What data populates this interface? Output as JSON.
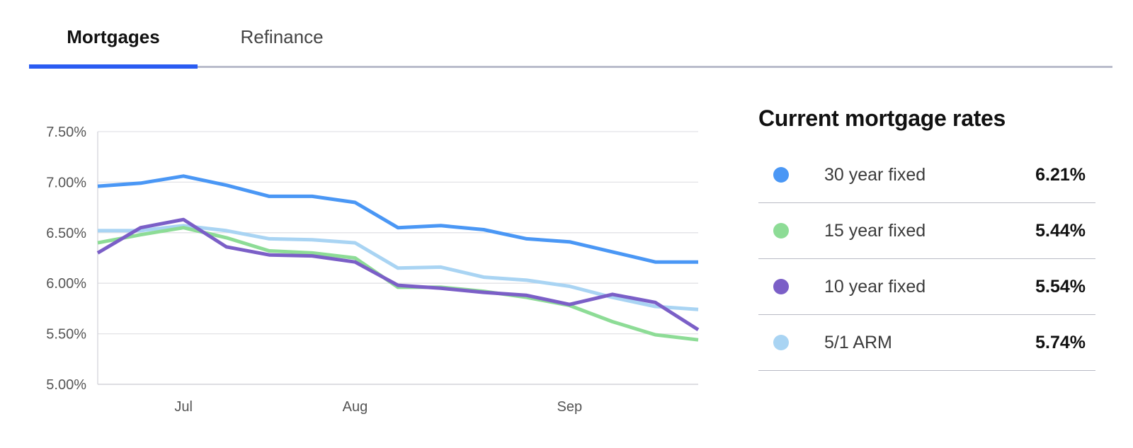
{
  "tabs": [
    {
      "label": "Mortgages",
      "active": true
    },
    {
      "label": "Refinance",
      "active": false
    }
  ],
  "accent_color": "#2a5cf2",
  "rates_panel": {
    "title": "Current mortgage rates",
    "items": [
      {
        "label": "30 year fixed",
        "value": "6.21%",
        "color": "#4a97f5"
      },
      {
        "label": "15 year fixed",
        "value": "5.44%",
        "color": "#8ddc96"
      },
      {
        "label": "10 year fixed",
        "value": "5.54%",
        "color": "#7b5fc7"
      },
      {
        "label": "5/1 ARM",
        "value": "5.74%",
        "color": "#a9d4f3"
      }
    ]
  },
  "chart_data": {
    "type": "line",
    "y_ticks": [
      "7.50%",
      "7.00%",
      "6.50%",
      "6.00%",
      "5.50%",
      "5.00%"
    ],
    "ylim": [
      5.0,
      7.5
    ],
    "x_tick_labels": [
      {
        "label": "Jul",
        "index": 2
      },
      {
        "label": "Aug",
        "index": 6
      },
      {
        "label": "Sep",
        "index": 11
      }
    ],
    "grid": true,
    "series": [
      {
        "name": "30 year fixed",
        "color": "#4a97f5",
        "values": [
          6.96,
          6.99,
          7.06,
          6.97,
          6.86,
          6.86,
          6.8,
          6.55,
          6.57,
          6.53,
          6.44,
          6.41,
          6.31,
          6.21,
          6.21
        ]
      },
      {
        "name": "15 year fixed",
        "color": "#8ddc96",
        "values": [
          6.4,
          6.48,
          6.55,
          6.45,
          6.32,
          6.3,
          6.25,
          5.96,
          5.96,
          5.92,
          5.86,
          5.78,
          5.62,
          5.49,
          5.44
        ]
      },
      {
        "name": "10 year fixed",
        "color": "#7b5fc7",
        "values": [
          6.3,
          6.55,
          6.63,
          6.36,
          6.28,
          6.27,
          6.21,
          5.98,
          5.95,
          5.91,
          5.88,
          5.79,
          5.89,
          5.81,
          5.54
        ]
      },
      {
        "name": "5/1 ARM",
        "color": "#a9d4f3",
        "values": [
          6.52,
          6.52,
          6.57,
          6.52,
          6.44,
          6.43,
          6.4,
          6.15,
          6.16,
          6.06,
          6.03,
          5.97,
          5.86,
          5.77,
          5.74
        ]
      }
    ]
  }
}
